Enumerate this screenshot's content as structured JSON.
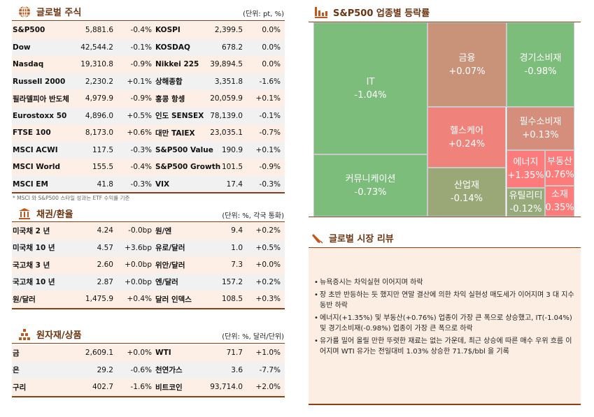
{
  "global_equity": {
    "title": "글로벌 주식",
    "unit": "(단위: pt, %)",
    "icon": "globe-icon",
    "rows": [
      [
        "S&P500",
        "5,881.6",
        "-0.4%",
        "KOSPI",
        "2,399.5",
        "0.0%"
      ],
      [
        "Dow",
        "42,544.2",
        "-0.1%",
        "KOSDAQ",
        "678.2",
        "0.0%"
      ],
      [
        "Nasdaq",
        "19,310.8",
        "-0.9%",
        "Nikkei 225",
        "39,894.5",
        "0.0%"
      ],
      [
        "Russell 2000",
        "2,230.2",
        "+0.1%",
        "상해종합",
        "3,351.8",
        "-1.6%"
      ],
      [
        "필라델피아 반도체",
        "4,979.9",
        "-0.9%",
        "홍콩 항셍",
        "20,059.9",
        "+0.1%"
      ],
      [
        "Eurostoxx 50",
        "4,896.0",
        "+0.5%",
        "인도 SENSEX",
        "78,139.0",
        "-0.1%"
      ],
      [
        "FTSE 100",
        "8,173.0",
        "+0.6%",
        "대만 TAIEX",
        "23,035.1",
        "-0.7%"
      ],
      [
        "MSCI ACWI",
        "117.5",
        "-0.3%",
        "S&P500 Value",
        "190.9",
        "+0.1%"
      ],
      [
        "MSCI World",
        "155.5",
        "-0.4%",
        "S&P500 Growth",
        "101.5",
        "-0.9%"
      ],
      [
        "MSCI EM",
        "41.8",
        "-0.3%",
        "VIX",
        "17.4",
        "-0.3%"
      ]
    ],
    "footnote": "* MSCI 와 S&P500 스타일 성과는 ETF 수익률 기준"
  },
  "bonds_fx": {
    "title": "채권/환율",
    "unit": "(단위: %, 각국 통화)",
    "icon": "bank-icon",
    "rows": [
      [
        "미국채 2 년",
        "4.24",
        "-0.0bp",
        "원/엔",
        "9.4",
        "+0.2%"
      ],
      [
        "미국채 10 년",
        "4.57",
        "+3.6bp",
        "유로/달러",
        "1.0",
        "+0.5%"
      ],
      [
        "국고채 3 년",
        "2.60",
        "+0.0bp",
        "위안/달러",
        "7.3",
        "+0.0%"
      ],
      [
        "국고채 10 년",
        "2.87",
        "+0.0bp",
        "엔/달러",
        "157.2",
        "+0.2%"
      ],
      [
        "원/달러",
        "1,475.9",
        "+0.4%",
        "달러 인덱스",
        "108.5",
        "+0.3%"
      ]
    ]
  },
  "commodities": {
    "title": "원자재/상품",
    "unit": "(단위: %, 달러/단위)",
    "icon": "gold-bars-icon",
    "rows": [
      [
        "금",
        "2,609.1",
        "+0.0%",
        "WTI",
        "71.7",
        "+1.0%"
      ],
      [
        "은",
        "29.2",
        "-0.6%",
        "천연가스",
        "3.6",
        "-7.7%"
      ],
      [
        "구리",
        "402.7",
        "-1.6%",
        "비트코인",
        "93,714.0",
        "+2.0%"
      ]
    ]
  },
  "sector": {
    "title": "S&P500 업종별 등락률",
    "icon": "bar-chart-icon",
    "cells": [
      {
        "name": "IT",
        "change": "-1.04%",
        "color": "#7dbd7b"
      },
      {
        "name": "커뮤니케이션",
        "change": "-0.73%",
        "color": "#7dbd7b"
      },
      {
        "name": "금융",
        "change": "+0.07%",
        "color": "#c9937a"
      },
      {
        "name": "경기소비재",
        "change": "-0.98%",
        "color": "#7dbd7b"
      },
      {
        "name": "헬스케어",
        "change": "+0.24%",
        "color": "#ef827a"
      },
      {
        "name": "산업재",
        "change": "-0.14%",
        "color": "#9aa878"
      },
      {
        "name": "필수소비재",
        "change": "+0.13%",
        "color": "#d58d7c"
      },
      {
        "name": "에너지",
        "change": "+1.35%",
        "color": "#fd7b7b"
      },
      {
        "name": "부동산",
        "change": "0.76%",
        "color": "#fd7b7b"
      },
      {
        "name": "유틸리티",
        "change": "-0.12%",
        "color": "#96aa7a"
      },
      {
        "name": "소재",
        "change": "0.35%",
        "color": "#fd7b7b"
      }
    ]
  },
  "review": {
    "title": "글로벌 시장 리뷰",
    "icon": "pen-icon",
    "bullets": [
      "뉴욕증시는 차익실현 이어지며 하락",
      "장 초반 반등하는 듯 했지만 연말 결산에 의한 차익 실현성 매도세가 이어지며 3 대 지수 동반 하락",
      "에너지(+1.35%) 및 부동산(+0.76%) 업종이 가장 큰 폭으로 상승했고, IT(-1.04%) 및 경기소비재(-0.98%) 업종이 가장 큰 폭으로 하락",
      "유가를 밀어 올릴 만한 뚜렷한 재료는 없는 가운데, 최근 상승에 따른 매수 우위 흐름 이어지며 WTI 유가는 전일대비 1.03% 상승한 71.7$/bbl 을 기록"
    ]
  },
  "colors": {
    "accent": "#8b3f12",
    "row_peach": "#fdefe5",
    "row_gray": "#f1f1f1"
  }
}
